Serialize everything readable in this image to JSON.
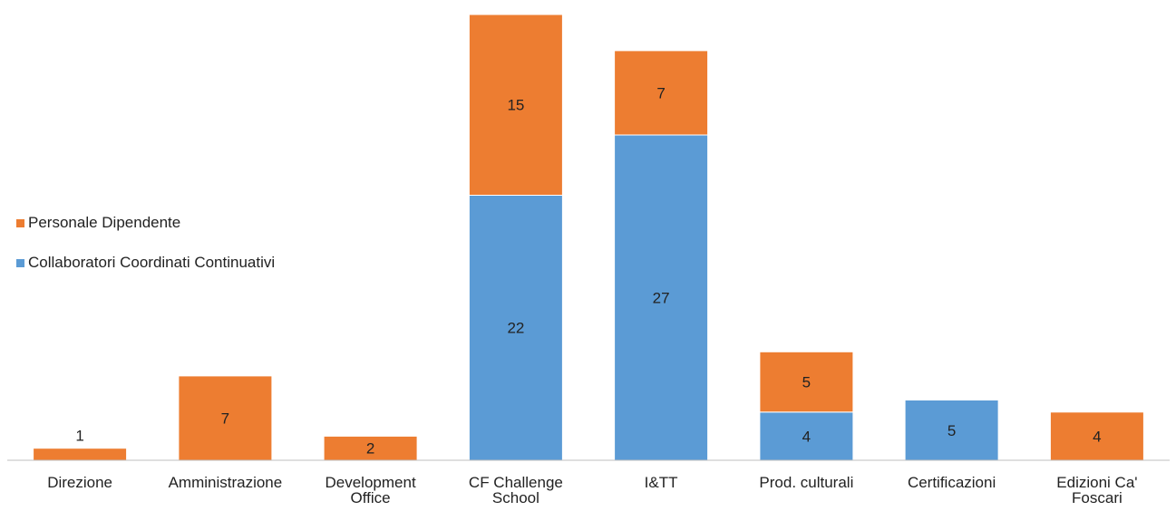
{
  "chart_data": {
    "type": "bar",
    "stacked": true,
    "categories": [
      "Direzione",
      "Amministrazione",
      "Development Office",
      "CF Challenge School",
      "I&TT",
      "Prod. culturali",
      "Certificazioni",
      "Edizioni Ca' Foscari"
    ],
    "category_lines": [
      [
        "Direzione"
      ],
      [
        "Amministrazione"
      ],
      [
        "Development",
        "Office"
      ],
      [
        "CF Challenge",
        "School"
      ],
      [
        "I&TT"
      ],
      [
        "Prod. culturali"
      ],
      [
        "Certificazioni"
      ],
      [
        "Edizioni Ca'",
        "Foscari"
      ]
    ],
    "series": [
      {
        "name": "Collaboratori Coordinati Continuativi",
        "color": "#5b9bd5",
        "values": [
          0,
          0,
          0,
          22,
          27,
          4,
          5,
          0
        ]
      },
      {
        "name": "Personale Dipendente",
        "color": "#ed7d31",
        "values": [
          1,
          7,
          2,
          15,
          7,
          5,
          0,
          4
        ]
      }
    ],
    "ylim": [
      0,
      37
    ],
    "grid": false,
    "legend_position": "left",
    "data_labels": true
  }
}
